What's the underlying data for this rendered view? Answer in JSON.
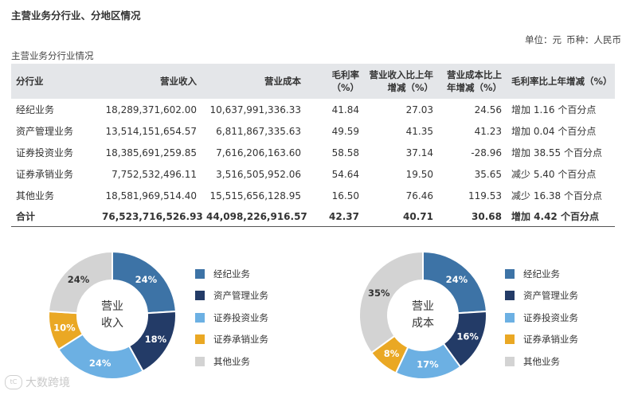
{
  "page": {
    "section_title": "主营业务分行业、分地区情况",
    "unit_label": "单位：元",
    "currency_label": "币种：人民币",
    "subtitle": "主营业务分行业情况"
  },
  "table": {
    "headers": [
      "分行业",
      "营业收入",
      "营业成本",
      "毛利率（%）",
      "营业收入比上年增减（%）",
      "营业成本比上年增减（%）",
      "毛利率比上年增减（%）"
    ],
    "rows": [
      [
        "经纪业务",
        "18,289,371,602.00",
        "10,637,991,336.33",
        "41.84",
        "27.03",
        "24.56",
        "增加 1.16 个百分点"
      ],
      [
        "资产管理业务",
        "13,514,151,654.57",
        "6,811,867,335.63",
        "49.59",
        "41.35",
        "41.23",
        "增加 0.04 个百分点"
      ],
      [
        "证券投资业务",
        "18,385,691,259.85",
        "7,616,206,163.60",
        "58.58",
        "37.14",
        "-28.96",
        "增加 38.55 个百分点"
      ],
      [
        "证券承销业务",
        "7,752,532,496.11",
        "3,516,505,952.06",
        "54.64",
        "19.50",
        "35.65",
        "减少 5.40 个百分点"
      ],
      [
        "其他业务",
        "18,581,969,514.40",
        "15,515,656,128.95",
        "16.50",
        "76.46",
        "119.53",
        "减少 16.38 个百分点"
      ]
    ],
    "total": [
      "合计",
      "76,523,716,526.93",
      "44,098,226,916.57",
      "42.37",
      "40.71",
      "30.68",
      "增加 4.42 个百分点"
    ]
  },
  "charts": {
    "legend": [
      "经纪业务",
      "资产管理业务",
      "证券投资业务",
      "证券承销业务",
      "其他业务"
    ],
    "colors": [
      "#3d73a6",
      "#233b67",
      "#6cb0e3",
      "#eaa824",
      "#d3d3d3"
    ],
    "revenue": {
      "center_line1": "营业",
      "center_line2": "收入",
      "labels": [
        "24%",
        "18%",
        "24%",
        "10%",
        "24%"
      ]
    },
    "cost": {
      "center_line1": "营业",
      "center_line2": "成本",
      "labels": [
        "24%",
        "16%",
        "17%",
        "8%",
        "35%"
      ]
    }
  },
  "chart_data": [
    {
      "type": "pie",
      "title": "营业收入",
      "categories": [
        "经纪业务",
        "资产管理业务",
        "证券投资业务",
        "证券承销业务",
        "其他业务"
      ],
      "values": [
        24,
        18,
        24,
        10,
        24
      ]
    },
    {
      "type": "pie",
      "title": "营业成本",
      "categories": [
        "经纪业务",
        "资产管理业务",
        "证券投资业务",
        "证券承销业务",
        "其他业务"
      ],
      "values": [
        24,
        16,
        17,
        8,
        35
      ]
    }
  ],
  "watermark": {
    "logo_text": "tC",
    "text": "大数跨境"
  }
}
